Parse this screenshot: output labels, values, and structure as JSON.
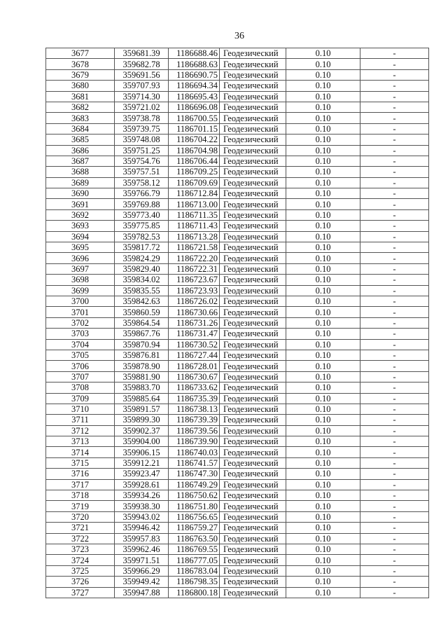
{
  "page_number": "36",
  "rows": [
    [
      "3677",
      "359681.39",
      "1186688.46",
      "Геодезический",
      "0.10",
      "-"
    ],
    [
      "3678",
      "359682.78",
      "1186688.63",
      "Геодезический",
      "0.10",
      "-"
    ],
    [
      "3679",
      "359691.56",
      "1186690.75",
      "Геодезический",
      "0.10",
      "-"
    ],
    [
      "3680",
      "359707.93",
      "1186694.34",
      "Геодезический",
      "0.10",
      "-"
    ],
    [
      "3681",
      "359714.30",
      "1186695.43",
      "Геодезический",
      "0.10",
      "-"
    ],
    [
      "3682",
      "359721.02",
      "1186696.08",
      "Геодезический",
      "0.10",
      "-"
    ],
    [
      "3683",
      "359738.78",
      "1186700.55",
      "Геодезический",
      "0.10",
      "-"
    ],
    [
      "3684",
      "359739.75",
      "1186701.15",
      "Геодезический",
      "0.10",
      "-"
    ],
    [
      "3685",
      "359748.08",
      "1186704.22",
      "Геодезический",
      "0.10",
      "-"
    ],
    [
      "3686",
      "359751.25",
      "1186704.98",
      "Геодезический",
      "0.10",
      "-"
    ],
    [
      "3687",
      "359754.76",
      "1186706.44",
      "Геодезический",
      "0.10",
      "-"
    ],
    [
      "3688",
      "359757.51",
      "1186709.25",
      "Геодезический",
      "0.10",
      "-"
    ],
    [
      "3689",
      "359758.12",
      "1186709.69",
      "Геодезический",
      "0.10",
      "-"
    ],
    [
      "3690",
      "359766.79",
      "1186712.84",
      "Геодезический",
      "0.10",
      "-"
    ],
    [
      "3691",
      "359769.88",
      "1186713.00",
      "Геодезический",
      "0.10",
      "-"
    ],
    [
      "3692",
      "359773.40",
      "1186711.35",
      "Геодезический",
      "0.10",
      "-"
    ],
    [
      "3693",
      "359775.85",
      "1186711.43",
      "Геодезический",
      "0.10",
      "-"
    ],
    [
      "3694",
      "359782.53",
      "1186713.28",
      "Геодезический",
      "0.10",
      "-"
    ],
    [
      "3695",
      "359817.72",
      "1186721.58",
      "Геодезический",
      "0.10",
      "-"
    ],
    [
      "3696",
      "359824.29",
      "1186722.20",
      "Геодезический",
      "0.10",
      "-"
    ],
    [
      "3697",
      "359829.40",
      "1186722.31",
      "Геодезический",
      "0.10",
      "-"
    ],
    [
      "3698",
      "359834.02",
      "1186723.67",
      "Геодезический",
      "0.10",
      "-"
    ],
    [
      "3699",
      "359835.55",
      "1186723.93",
      "Геодезический",
      "0.10",
      "-"
    ],
    [
      "3700",
      "359842.63",
      "1186726.02",
      "Геодезический",
      "0.10",
      "-"
    ],
    [
      "3701",
      "359860.59",
      "1186730.66",
      "Геодезический",
      "0.10",
      "-"
    ],
    [
      "3702",
      "359864.54",
      "1186731.26",
      "Геодезический",
      "0.10",
      "-"
    ],
    [
      "3703",
      "359867.76",
      "1186731.47",
      "Геодезический",
      "0.10",
      "-"
    ],
    [
      "3704",
      "359870.94",
      "1186730.52",
      "Геодезический",
      "0.10",
      "-"
    ],
    [
      "3705",
      "359876.81",
      "1186727.44",
      "Геодезический",
      "0.10",
      "-"
    ],
    [
      "3706",
      "359878.90",
      "1186728.01",
      "Геодезический",
      "0.10",
      "-"
    ],
    [
      "3707",
      "359881.90",
      "1186730.67",
      "Геодезический",
      "0.10",
      "-"
    ],
    [
      "3708",
      "359883.70",
      "1186733.62",
      "Геодезический",
      "0.10",
      "-"
    ],
    [
      "3709",
      "359885.64",
      "1186735.39",
      "Геодезический",
      "0.10",
      "-"
    ],
    [
      "3710",
      "359891.57",
      "1186738.13",
      "Геодезический",
      "0.10",
      "-"
    ],
    [
      "3711",
      "359899.30",
      "1186739.39",
      "Геодезический",
      "0.10",
      "-"
    ],
    [
      "3712",
      "359902.37",
      "1186739.56",
      "Геодезический",
      "0.10",
      "-"
    ],
    [
      "3713",
      "359904.00",
      "1186739.90",
      "Геодезический",
      "0.10",
      "-"
    ],
    [
      "3714",
      "359906.15",
      "1186740.03",
      "Геодезический",
      "0.10",
      "-"
    ],
    [
      "3715",
      "359912.21",
      "1186741.57",
      "Геодезический",
      "0.10",
      "-"
    ],
    [
      "3716",
      "359923.47",
      "1186747.30",
      "Геодезический",
      "0.10",
      "-"
    ],
    [
      "3717",
      "359928.61",
      "1186749.29",
      "Геодезический",
      "0.10",
      "-"
    ],
    [
      "3718",
      "359934.26",
      "1186750.62",
      "Геодезический",
      "0.10",
      "-"
    ],
    [
      "3719",
      "359938.30",
      "1186751.80",
      "Геодезический",
      "0.10",
      "-"
    ],
    [
      "3720",
      "359943.02",
      "1186756.65",
      "Геодезический",
      "0.10",
      "-"
    ],
    [
      "3721",
      "359946.42",
      "1186759.27",
      "Геодезический",
      "0.10",
      "-"
    ],
    [
      "3722",
      "359957.83",
      "1186763.50",
      "Геодезический",
      "0.10",
      "-"
    ],
    [
      "3723",
      "359962.46",
      "1186769.55",
      "Геодезический",
      "0.10",
      "-"
    ],
    [
      "3724",
      "359971.51",
      "1186777.05",
      "Геодезический",
      "0.10",
      "-"
    ],
    [
      "3725",
      "359966.29",
      "1186783.04",
      "Геодезический",
      "0.10",
      "-"
    ],
    [
      "3726",
      "359949.42",
      "1186798.35",
      "Геодезический",
      "0.10",
      "-"
    ],
    [
      "3727",
      "359947.88",
      "1186800.18",
      "Геодезический",
      "0.10",
      "-"
    ]
  ]
}
